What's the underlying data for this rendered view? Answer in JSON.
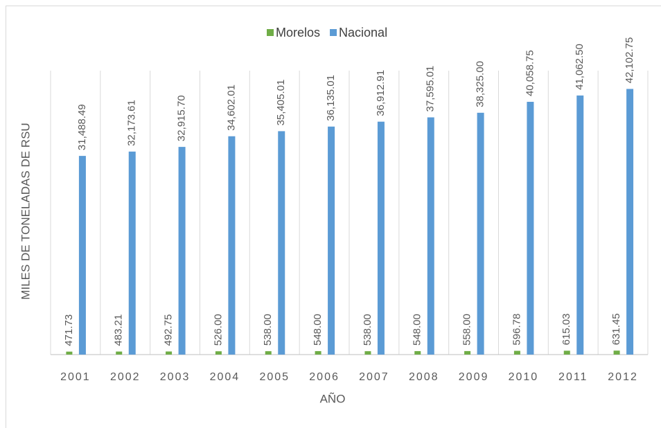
{
  "chart_data": {
    "type": "bar",
    "x_label": "AÑO",
    "y_label": "MILES DE TONELADAS DE RSU",
    "categories": [
      "2001",
      "2002",
      "2003",
      "2004",
      "2005",
      "2006",
      "2007",
      "2008",
      "2009",
      "2010",
      "2011",
      "2012"
    ],
    "series": [
      {
        "name": "Morelos",
        "color": "#70ad47",
        "values": [
          471.73,
          483.21,
          492.75,
          526.0,
          538.0,
          548.0,
          538.0,
          548.0,
          558.0,
          596.78,
          615.03,
          631.45
        ],
        "value_labels": [
          "471.73",
          "483.21",
          "492.75",
          "526.00",
          "538.00",
          "548.00",
          "538.00",
          "548.00",
          "558.00",
          "596.78",
          "615.03",
          "631.45"
        ]
      },
      {
        "name": "Nacional",
        "color": "#5b9bd5",
        "values": [
          31488.49,
          32173.61,
          32915.7,
          34602.01,
          35405.01,
          36135.01,
          36912.91,
          37595.01,
          38325.0,
          40058.75,
          41062.5,
          42102.75
        ],
        "value_labels": [
          "31,488.49",
          "32,173.61",
          "32,915.70",
          "34,602.01",
          "35,405.01",
          "36,135.01",
          "36,912.91",
          "37,595.01",
          "38,325.00",
          "40,058.75",
          "41,062.50",
          "42,102.75"
        ]
      }
    ],
    "ylim": [
      0,
      45000
    ],
    "legend": "top"
  }
}
